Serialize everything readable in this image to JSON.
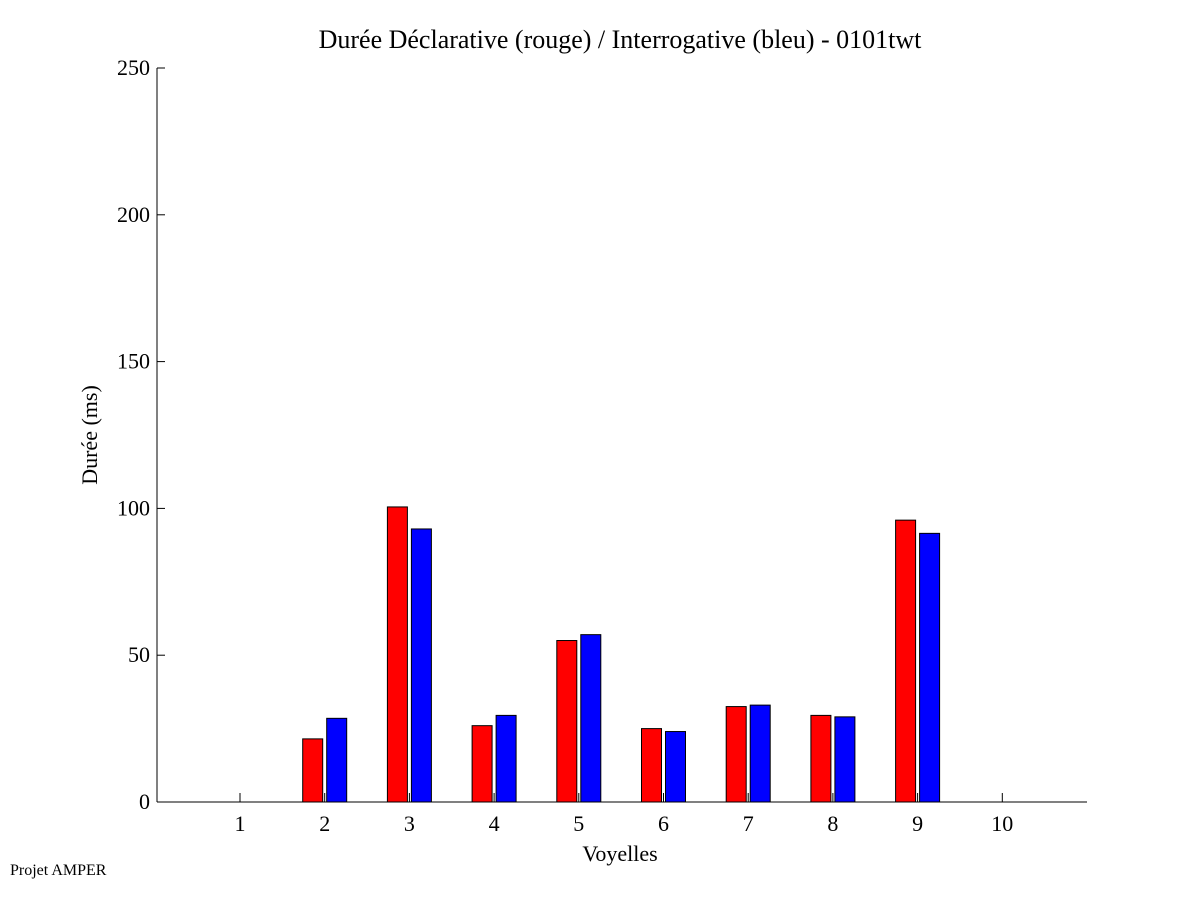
{
  "chart_data": {
    "type": "bar",
    "title": "Durée Déclarative (rouge) / Interrogative (bleu) - 0101twt",
    "xlabel": "Voyelles",
    "ylabel": "Durée (ms)",
    "categories": [
      "1",
      "2",
      "3",
      "4",
      "5",
      "6",
      "7",
      "8",
      "9",
      "10"
    ],
    "ylim": [
      0,
      250
    ],
    "yticks": [
      0,
      50,
      100,
      150,
      200,
      250
    ],
    "grid": false,
    "legend": "none",
    "series": [
      {
        "color": "#ff0000",
        "values": [
          0,
          21.5,
          100.5,
          26,
          55,
          25,
          32.5,
          29.5,
          96,
          0
        ]
      },
      {
        "color": "#0000ff",
        "values": [
          0,
          28.5,
          93,
          29.5,
          57,
          24,
          33,
          29,
          91.5,
          0
        ]
      }
    ]
  },
  "footer": {
    "credit": "Projet AMPER"
  }
}
